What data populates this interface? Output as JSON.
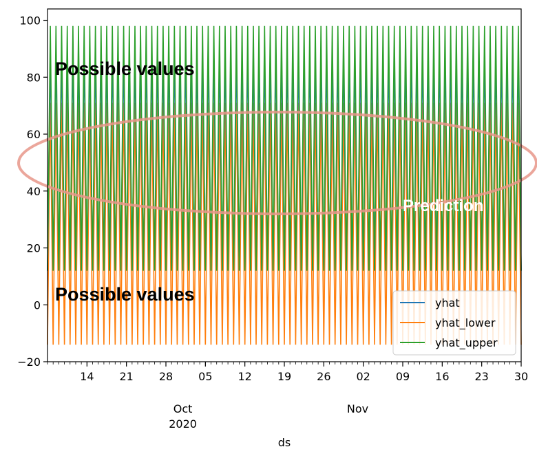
{
  "chart_data": {
    "type": "line",
    "x_axis": {
      "label": "ds",
      "range": [
        "2020-09-07",
        "2020-11-30"
      ],
      "day_ticks": [
        "14",
        "21",
        "28",
        "05",
        "12",
        "19",
        "26",
        "02",
        "09",
        "16",
        "23",
        "30"
      ],
      "tick_dates": [
        "2020-09-14",
        "2020-09-21",
        "2020-09-28",
        "2020-10-05",
        "2020-10-12",
        "2020-10-19",
        "2020-10-26",
        "2020-11-02",
        "2020-11-09",
        "2020-11-16",
        "2020-11-23",
        "2020-11-30"
      ],
      "month_labels": [
        {
          "text": "Oct",
          "sub": "2020",
          "date": "2020-10-01"
        },
        {
          "text": "Nov",
          "sub": "",
          "date": "2020-11-01"
        }
      ]
    },
    "y_axis": {
      "range": [
        -20,
        104
      ],
      "ticks": [
        -20,
        0,
        20,
        40,
        60,
        80,
        100
      ]
    },
    "grid": false,
    "legend": {
      "placement": "lower-right",
      "entries": [
        {
          "name": "yhat",
          "color": "#1f77b4"
        },
        {
          "name": "yhat_lower",
          "color": "#ff7f0e"
        },
        {
          "name": "yhat_upper",
          "color": "#2ca02c"
        }
      ]
    },
    "series": [
      {
        "name": "yhat",
        "color": "#1f77b4",
        "oscillation": {
          "low": 12,
          "high": 88
        }
      },
      {
        "name": "yhat_lower",
        "color": "#ff7f0e",
        "oscillation": {
          "low": -14,
          "high": 71
        }
      },
      {
        "name": "yhat_upper",
        "color": "#2ca02c",
        "oscillation": {
          "low": 12,
          "high": 98
        }
      }
    ],
    "annotations": [
      {
        "text": "Possible values",
        "style": "black-bold",
        "x": "2020-09-08",
        "y": 85
      },
      {
        "text": "Possible values",
        "style": "black-bold",
        "x": "2020-09-08",
        "y": 3
      },
      {
        "text": "Prediction",
        "style": "white-bold",
        "x": "2020-11-16",
        "y": 34
      }
    ],
    "highlight_ellipse": {
      "color": "#e8968a",
      "center_y": 50,
      "y_extent": [
        31,
        68
      ]
    }
  }
}
